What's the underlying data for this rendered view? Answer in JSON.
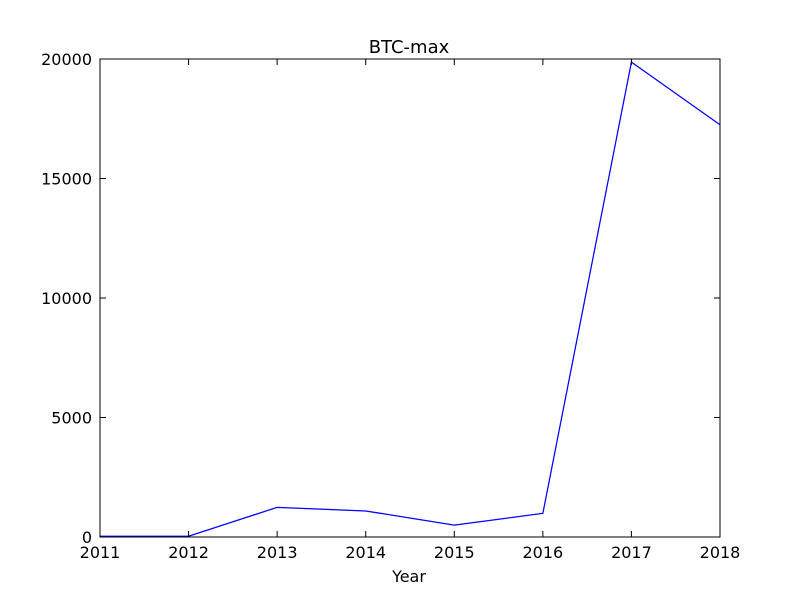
{
  "chart_data": {
    "type": "line",
    "title": "BTC-max",
    "xlabel": "Year",
    "ylabel": "",
    "xlim": [
      2011,
      2018
    ],
    "ylim": [
      0,
      20000
    ],
    "xticks": [
      2011,
      2012,
      2013,
      2014,
      2015,
      2016,
      2017,
      2018
    ],
    "yticks": [
      0,
      5000,
      10000,
      15000,
      20000
    ],
    "xtick_labels": [
      "2011",
      "2012",
      "2013",
      "2014",
      "2015",
      "2016",
      "2017",
      "2018"
    ],
    "ytick_labels": [
      "0",
      "5000",
      "10000",
      "15000",
      "20000"
    ],
    "grid": false,
    "legend": "none",
    "series": [
      {
        "color": "#0000ff",
        "x": [
          2011,
          2012,
          2013,
          2014,
          2015,
          2016,
          2017,
          2018
        ],
        "y": [
          30,
          32,
          1240,
          1090,
          495,
          990,
          19870,
          17250
        ]
      }
    ]
  }
}
